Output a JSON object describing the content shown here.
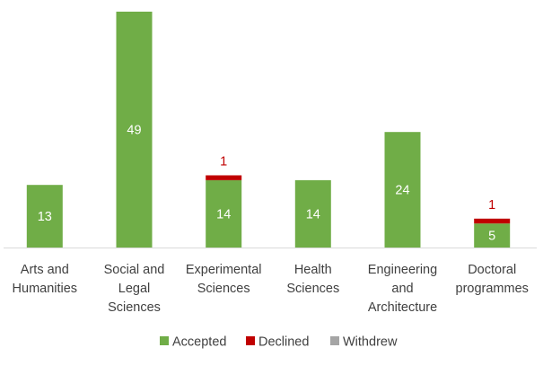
{
  "chart_data": {
    "type": "bar",
    "stacked": true,
    "categories": [
      [
        "Arts and",
        "Humanities"
      ],
      [
        "Social and",
        "Legal",
        "Sciences"
      ],
      [
        "Experimental",
        "Sciences"
      ],
      [
        "Health",
        "Sciences"
      ],
      [
        "Engineering",
        "and",
        "Architecture"
      ],
      [
        "Doctoral",
        "programmes"
      ]
    ],
    "series": [
      {
        "name": "Accepted",
        "color": "#70ad47",
        "label_color": "#ffffff",
        "values": [
          13,
          49,
          14,
          14,
          24,
          5
        ]
      },
      {
        "name": "Declined",
        "color": "#c00000",
        "label_color": "#c00000",
        "values": [
          0,
          0,
          1,
          0,
          0,
          1
        ]
      },
      {
        "name": "Withdrew",
        "color": "#a5a5a5",
        "label_color": "#404040",
        "values": [
          0,
          0,
          0,
          0,
          0,
          0
        ]
      }
    ],
    "ylim": [
      0,
      49
    ],
    "grid": false,
    "legend_position": "bottom",
    "axis_color": "#d9d9d9"
  }
}
